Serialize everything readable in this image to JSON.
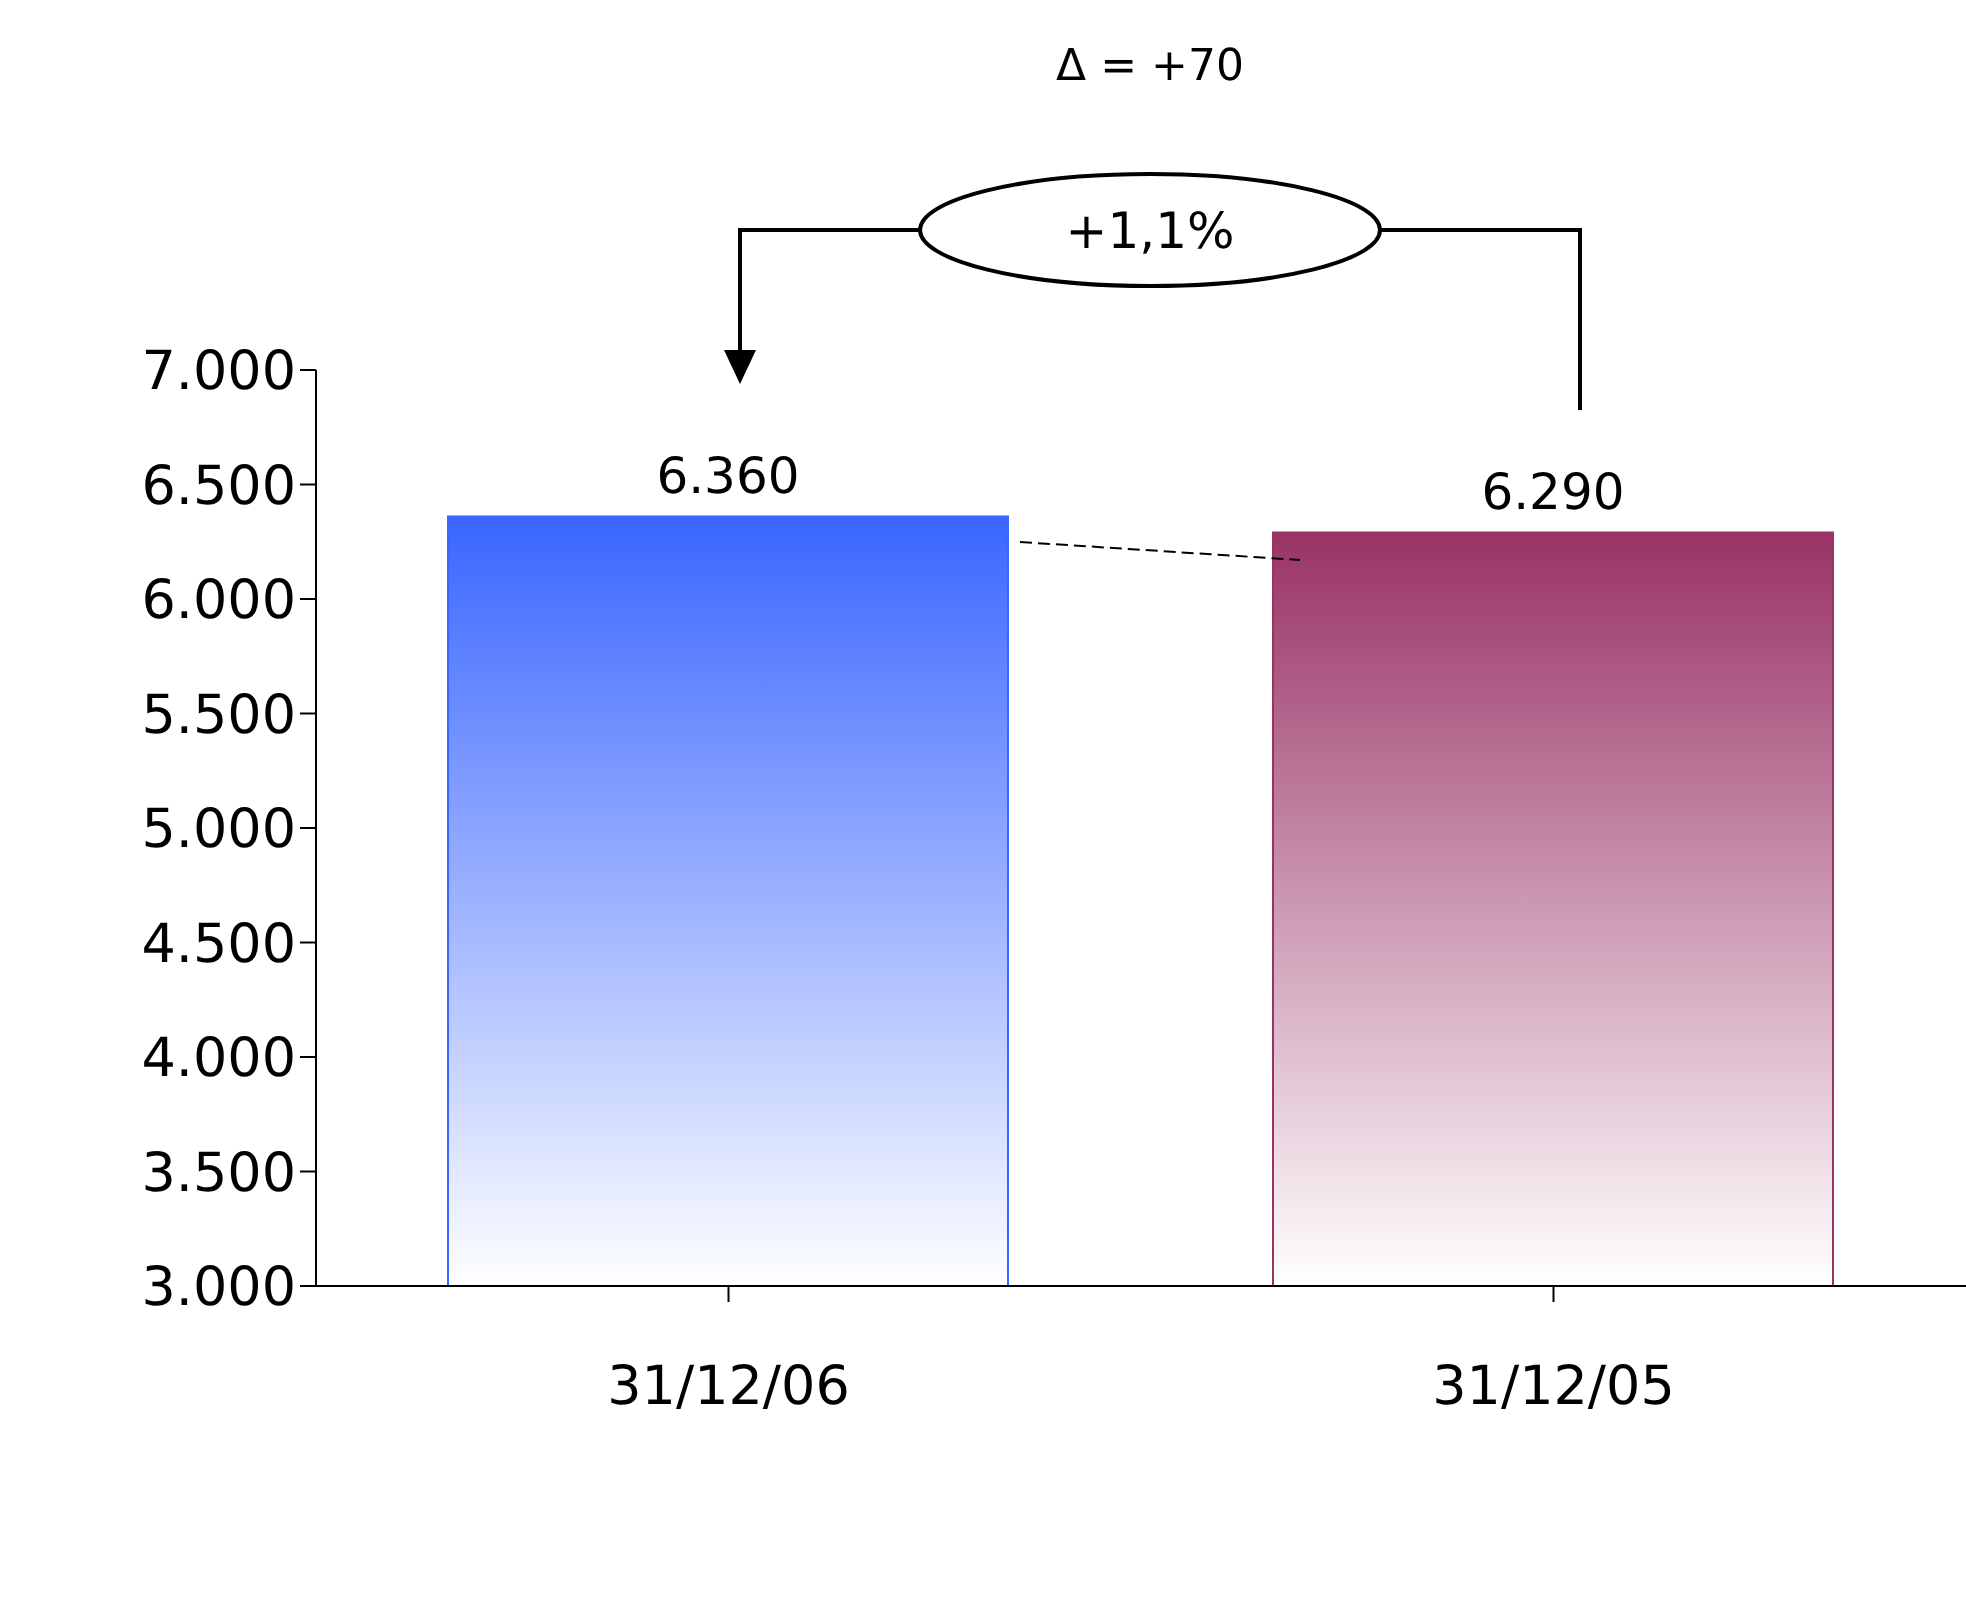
{
  "chart_data": {
    "type": "bar",
    "categories": [
      "31/12/06",
      "31/12/05"
    ],
    "values": [
      6360,
      6290
    ],
    "colors": [
      "#3a66ff",
      "#993366"
    ],
    "value_labels": [
      "6.360",
      "6.290"
    ],
    "ylim": [
      3000,
      7000
    ],
    "yticks": [
      {
        "value": 3000,
        "label": "3.000"
      },
      {
        "value": 3500,
        "label": "3.500"
      },
      {
        "value": 4000,
        "label": "4.000"
      },
      {
        "value": 4500,
        "label": "4.500"
      },
      {
        "value": 5000,
        "label": "5.000"
      },
      {
        "value": 5500,
        "label": "5.500"
      },
      {
        "value": 6000,
        "label": "6.000"
      },
      {
        "value": 6500,
        "label": "6.500"
      },
      {
        "value": 7000,
        "label": "7.000"
      }
    ],
    "grid": false,
    "legend": false,
    "annotations": [
      "Δ = +70",
      "+1,1%"
    ]
  }
}
